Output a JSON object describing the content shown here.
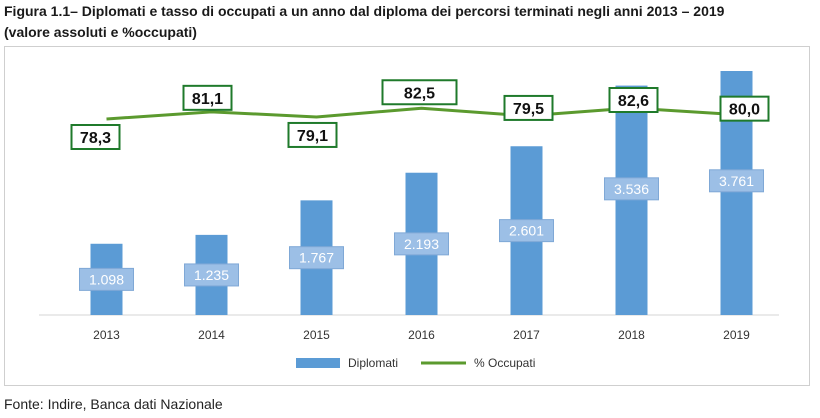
{
  "header": {
    "title_line1": "Figura 1.1– Diplomati e tasso di occupati a un anno dal diploma dei percorsi terminati negli anni 2013 – 2019",
    "title_line2": "(valore assoluti e %occupati)"
  },
  "footer": {
    "source": "Fonte: Indire, Banca dati Nazionale"
  },
  "chart_data": {
    "type": "bar",
    "categories": [
      "2013",
      "2014",
      "2015",
      "2016",
      "2017",
      "2018",
      "2019"
    ],
    "series": [
      {
        "name": "Diplomati",
        "type": "bar",
        "values": [
          1098,
          1235,
          1767,
          2193,
          2601,
          3536,
          3761
        ],
        "labels": [
          "1.098",
          "1.235",
          "1.767",
          "2.193",
          "2.601",
          "3.536",
          "3.761"
        ],
        "color": "#5b9bd5"
      },
      {
        "name": "% Occupati",
        "type": "line",
        "values": [
          78.3,
          81.1,
          79.1,
          82.5,
          79.5,
          82.6,
          80.0
        ],
        "labels": [
          "78,3",
          "81,1",
          "79,1",
          "82,5",
          "79,5",
          "82,6",
          "80,0"
        ],
        "color": "#5b9a2e"
      }
    ],
    "legend": {
      "position": "bottom"
    },
    "grid": false
  }
}
